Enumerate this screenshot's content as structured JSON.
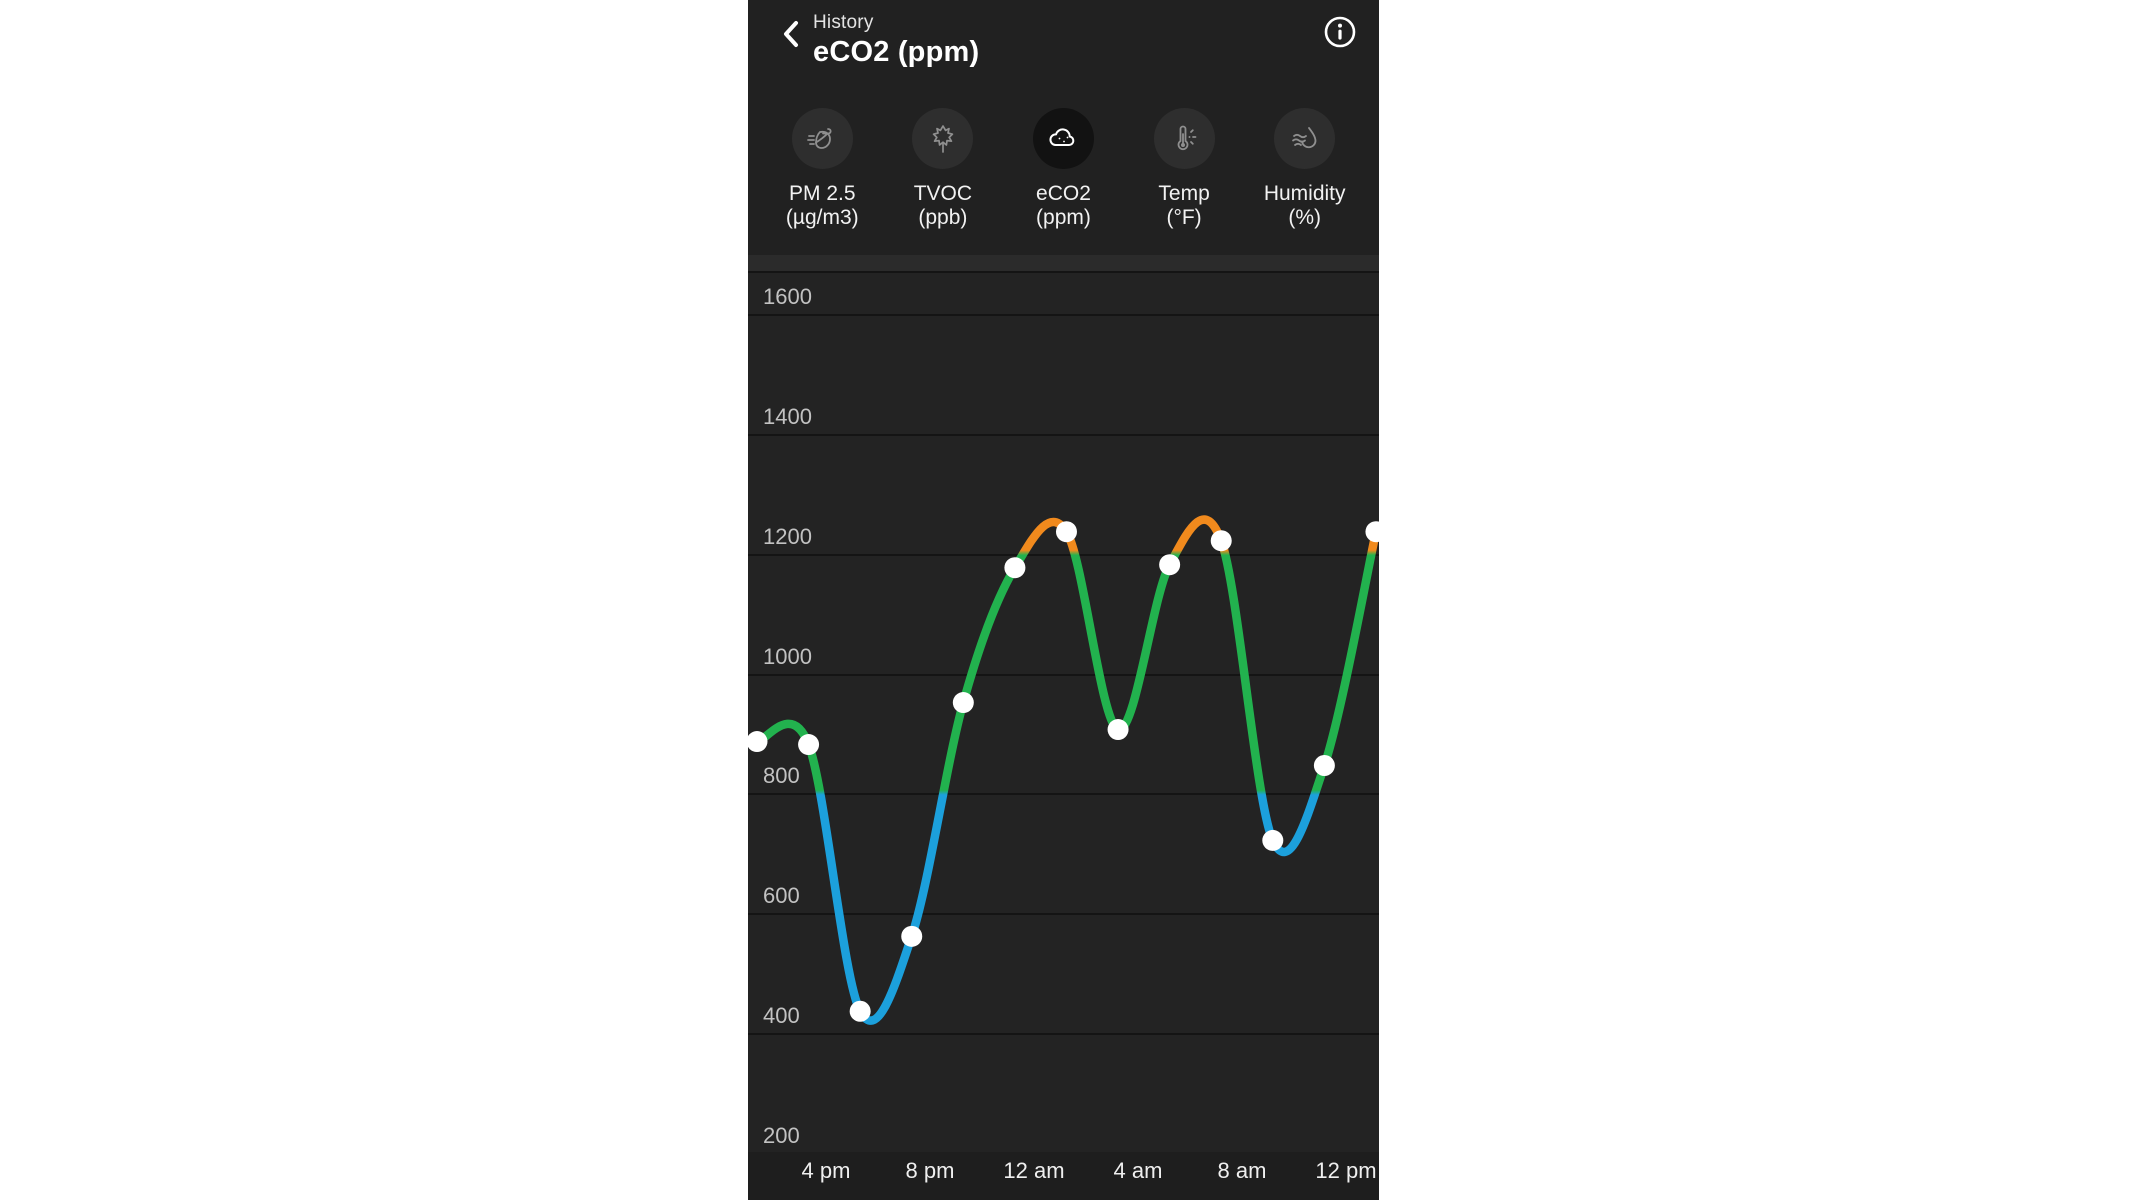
{
  "header": {
    "breadcrumb": "History",
    "title": "eCO2 (ppm)",
    "back_icon": "chevron-left-icon",
    "info_icon": "info-icon"
  },
  "sensors": [
    {
      "name": "PM 2.5",
      "unit": "(µg/m3)",
      "icon": "leaf-wind-icon",
      "selected": false
    },
    {
      "name": "TVOC",
      "unit": "(ppb)",
      "icon": "maple-leaf-icon",
      "selected": false
    },
    {
      "name": "eCO2",
      "unit": "(ppm)",
      "icon": "cloud-co2-icon",
      "selected": true
    },
    {
      "name": "Temp",
      "unit": "(°F)",
      "icon": "thermometer-icon",
      "selected": false
    },
    {
      "name": "Humidity",
      "unit": "(%)",
      "icon": "humidity-drop-icon",
      "selected": false
    }
  ],
  "chart_data": {
    "type": "line",
    "title": "eCO2 (ppm) history",
    "unit": "ppm",
    "sample_interval_hours": 2,
    "x_tick_labels": [
      "4 pm",
      "8 pm",
      "12 am",
      "4 am",
      "8 am",
      "12 pm"
    ],
    "y_ticks": [
      1600,
      1400,
      1200,
      1000,
      800,
      600,
      400,
      200
    ],
    "ylim": [
      200,
      1670
    ],
    "grid": "on",
    "points": [
      {
        "t": "2 pm",
        "v": 885
      },
      {
        "t": "4 pm",
        "v": 880
      },
      {
        "t": "6 pm",
        "v": 435
      },
      {
        "t": "8 pm",
        "v": 560
      },
      {
        "t": "10 pm",
        "v": 950
      },
      {
        "t": "12 am",
        "v": 1175
      },
      {
        "t": "2 am",
        "v": 1235
      },
      {
        "t": "4 am",
        "v": 905
      },
      {
        "t": "6 am",
        "v": 1180
      },
      {
        "t": "8 am",
        "v": 1220
      },
      {
        "t": "10 am",
        "v": 720
      },
      {
        "t": "12 pm",
        "v": 845
      },
      {
        "t": "2 pm",
        "v": 1235
      }
    ],
    "color_rules": [
      {
        "range": "below 800",
        "color": "#1CA0DC"
      },
      {
        "range": "800 to 1200",
        "color": "#22B24E"
      },
      {
        "range": "above 1200",
        "color": "#F18A1D"
      }
    ],
    "thresholds": {
      "low": 800,
      "high": 1200
    },
    "point_color": "#FFFFFF"
  },
  "colors": {
    "page_bg": "#212121",
    "plot_bg": "#232323",
    "gridline": "#141414",
    "axis_label": "#C2C2C2"
  }
}
